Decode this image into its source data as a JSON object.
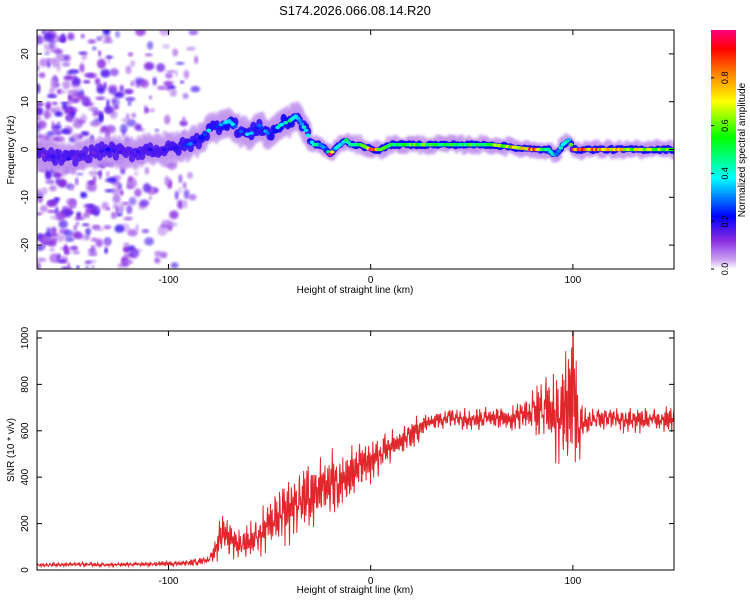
{
  "figure_title": "S174.2026.066.08.14.R20",
  "colors": {
    "snr_line": "#e0262a",
    "axis": "#000000",
    "spectrogram_bg": "#ffffff"
  },
  "chart_data": [
    {
      "type": "heatmap",
      "name": "spectrogram",
      "title": "S174.2026.066.08.14.R20",
      "xlabel": "Height of straight line (km)",
      "ylabel": "Frequency (Hz)",
      "xlim": [
        -165,
        150
      ],
      "ylim": [
        -25,
        25
      ],
      "xticks": [
        -100,
        0,
        100
      ],
      "yticks": [
        -20,
        -10,
        0,
        10,
        20
      ],
      "colorbar": {
        "label": "Normalized spectral amplitude",
        "range": [
          0.0,
          1.0
        ],
        "ticks": [
          "0.0",
          "0.2",
          "0.4",
          "0.6",
          "0.8"
        ],
        "colormap": [
          "#ffffff",
          "#8a2be2",
          "#0000ff",
          "#00ffff",
          "#00ff00",
          "#ffff00",
          "#ff8000",
          "#ff0000",
          "#ff0080"
        ]
      },
      "ridge": {
        "x": [
          -165,
          -150,
          -140,
          -130,
          -120,
          -110,
          -100,
          -90,
          -85,
          -80,
          -75,
          -70,
          -65,
          -60,
          -55,
          -50,
          -45,
          -40,
          -37,
          -35,
          -32,
          -30,
          -28,
          -25,
          -22,
          -20,
          -18,
          -15,
          -12,
          -10,
          -5,
          0,
          5,
          10,
          20,
          40,
          60,
          80,
          88,
          90,
          92,
          95,
          98,
          100,
          110,
          130,
          150
        ],
        "freq": [
          -1,
          -2,
          -1,
          0,
          -1,
          0,
          0,
          1,
          2,
          4,
          5,
          6,
          4,
          3,
          5,
          3,
          5,
          6,
          7,
          6,
          4,
          2,
          1,
          1,
          0,
          -1,
          0,
          1,
          2,
          1,
          1,
          0,
          0,
          1,
          1,
          1,
          1,
          0,
          0,
          -1,
          -1,
          1,
          2,
          0,
          0,
          0,
          0
        ],
        "amp": [
          0.15,
          0.2,
          0.15,
          0.2,
          0.15,
          0.2,
          0.2,
          0.3,
          0.25,
          0.35,
          0.3,
          0.45,
          0.3,
          0.35,
          0.3,
          0.35,
          0.45,
          0.5,
          0.4,
          0.35,
          0.4,
          0.3,
          0.5,
          0.4,
          0.3,
          0.95,
          0.35,
          0.4,
          0.5,
          0.45,
          0.55,
          0.95,
          0.7,
          0.55,
          0.6,
          0.55,
          0.6,
          0.9,
          0.45,
          0.5,
          0.35,
          0.5,
          0.45,
          0.95,
          0.85,
          0.7,
          0.6
        ]
      }
    },
    {
      "type": "line",
      "name": "snr",
      "title": "",
      "xlabel": "Height of straight line (km)",
      "ylabel": "SNR (10 * v/v)",
      "xlim": [
        -165,
        150
      ],
      "ylim": [
        0,
        1030
      ],
      "xticks": [
        -100,
        0,
        100
      ],
      "yticks": [
        0,
        200,
        400,
        600,
        800,
        1000
      ],
      "series": [
        {
          "name": "SNR",
          "x": [
            -165,
            -150,
            -130,
            -110,
            -90,
            -80,
            -75,
            -72,
            -70,
            -65,
            -60,
            -55,
            -50,
            -45,
            -40,
            -35,
            -30,
            -25,
            -20,
            -15,
            -10,
            -5,
            0,
            10,
            20,
            25,
            30,
            40,
            50,
            60,
            70,
            75,
            80,
            85,
            90,
            95,
            97,
            99,
            100,
            101,
            103,
            105,
            110,
            120,
            130,
            140,
            150
          ],
          "y": [
            20,
            25,
            22,
            25,
            30,
            45,
            120,
            170,
            140,
            110,
            130,
            150,
            200,
            220,
            260,
            300,
            310,
            360,
            370,
            390,
            410,
            450,
            470,
            530,
            580,
            620,
            640,
            660,
            650,
            660,
            650,
            670,
            680,
            690,
            700,
            650,
            720,
            800,
            900,
            780,
            600,
            640,
            650,
            660,
            640,
            650,
            650
          ],
          "amplitude": [
            8,
            8,
            8,
            10,
            12,
            20,
            70,
            90,
            80,
            70,
            80,
            90,
            110,
            120,
            130,
            140,
            130,
            140,
            140,
            120,
            110,
            100,
            90,
            70,
            60,
            50,
            45,
            40,
            45,
            45,
            50,
            60,
            100,
            140,
            170,
            220,
            260,
            320,
            380,
            300,
            120,
            70,
            60,
            55,
            50,
            50,
            50
          ]
        }
      ]
    }
  ]
}
